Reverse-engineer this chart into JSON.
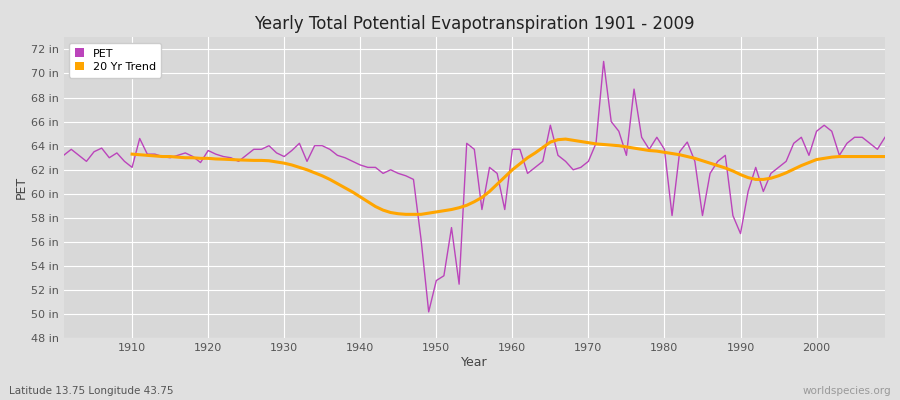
{
  "title": "Yearly Total Potential Evapotranspiration 1901 - 2009",
  "xlabel": "Year",
  "ylabel": "PET",
  "subtitle": "Latitude 13.75 Longitude 43.75",
  "watermark": "worldspecies.org",
  "pet_color": "#bb44bb",
  "trend_color": "#ffa500",
  "fig_bg_color": "#e0e0e0",
  "plot_bg_color": "#d8d8d8",
  "ylim": [
    48,
    73
  ],
  "xlim": [
    1901,
    2009
  ],
  "yticks": [
    48,
    50,
    52,
    54,
    56,
    58,
    60,
    62,
    64,
    66,
    68,
    70,
    72
  ],
  "xticks": [
    1910,
    1920,
    1930,
    1940,
    1950,
    1960,
    1970,
    1980,
    1990,
    2000
  ],
  "years": [
    1901,
    1902,
    1903,
    1904,
    1905,
    1906,
    1907,
    1908,
    1909,
    1910,
    1911,
    1912,
    1913,
    1914,
    1915,
    1916,
    1917,
    1918,
    1919,
    1920,
    1921,
    1922,
    1923,
    1924,
    1925,
    1926,
    1927,
    1928,
    1929,
    1930,
    1931,
    1932,
    1933,
    1934,
    1935,
    1936,
    1937,
    1938,
    1939,
    1940,
    1941,
    1942,
    1943,
    1944,
    1945,
    1946,
    1947,
    1948,
    1949,
    1950,
    1951,
    1952,
    1953,
    1954,
    1955,
    1956,
    1957,
    1958,
    1959,
    1960,
    1961,
    1962,
    1963,
    1964,
    1965,
    1966,
    1967,
    1968,
    1969,
    1970,
    1971,
    1972,
    1973,
    1974,
    1975,
    1976,
    1977,
    1978,
    1979,
    1980,
    1981,
    1982,
    1983,
    1984,
    1985,
    1986,
    1987,
    1988,
    1989,
    1990,
    1991,
    1992,
    1993,
    1994,
    1995,
    1996,
    1997,
    1998,
    1999,
    2000,
    2001,
    2002,
    2003,
    2004,
    2005,
    2006,
    2007,
    2008,
    2009
  ],
  "pet_values": [
    63.2,
    63.7,
    63.2,
    62.7,
    63.5,
    63.8,
    63.0,
    63.4,
    62.7,
    62.2,
    64.6,
    63.3,
    63.3,
    63.1,
    63.0,
    63.2,
    63.4,
    63.1,
    62.6,
    63.6,
    63.3,
    63.1,
    63.0,
    62.7,
    63.2,
    63.7,
    63.7,
    64.0,
    63.4,
    63.1,
    63.6,
    64.2,
    62.7,
    64.0,
    64.0,
    63.7,
    63.2,
    63.0,
    62.7,
    62.4,
    62.2,
    62.2,
    61.7,
    62.0,
    61.7,
    61.5,
    61.2,
    56.2,
    50.2,
    52.8,
    53.2,
    57.2,
    52.5,
    64.2,
    63.7,
    58.7,
    62.2,
    61.7,
    58.7,
    63.7,
    63.7,
    61.7,
    62.2,
    62.7,
    65.7,
    63.2,
    62.7,
    62.0,
    62.2,
    62.7,
    64.2,
    71.0,
    66.0,
    65.2,
    63.2,
    68.7,
    64.7,
    63.7,
    64.7,
    63.7,
    58.2,
    63.5,
    64.3,
    62.7,
    58.2,
    61.7,
    62.7,
    63.2,
    58.2,
    56.7,
    60.2,
    62.2,
    60.2,
    61.7,
    62.2,
    62.7,
    64.2,
    64.7,
    63.2,
    65.2,
    65.7,
    65.2,
    63.2,
    64.2,
    64.7,
    64.7,
    64.2,
    63.7,
    64.7
  ],
  "trend_values": [
    null,
    null,
    null,
    null,
    null,
    null,
    null,
    null,
    null,
    63.3,
    63.25,
    63.2,
    63.15,
    63.1,
    63.1,
    63.05,
    63.0,
    63.0,
    62.95,
    62.95,
    62.9,
    62.88,
    62.85,
    62.82,
    62.8,
    62.78,
    62.78,
    62.75,
    62.65,
    62.55,
    62.4,
    62.2,
    62.0,
    61.75,
    61.5,
    61.2,
    60.85,
    60.5,
    60.15,
    59.75,
    59.35,
    58.95,
    58.65,
    58.45,
    58.35,
    58.3,
    58.3,
    58.3,
    58.4,
    58.5,
    58.6,
    58.7,
    58.85,
    59.05,
    59.35,
    59.7,
    60.2,
    60.8,
    61.4,
    62.0,
    62.5,
    63.0,
    63.4,
    63.85,
    64.3,
    64.5,
    64.55,
    64.45,
    64.35,
    64.25,
    64.15,
    64.1,
    64.05,
    64.0,
    63.9,
    63.8,
    63.7,
    63.6,
    63.55,
    63.45,
    63.35,
    63.25,
    63.1,
    62.95,
    62.75,
    62.55,
    62.35,
    62.15,
    61.9,
    61.6,
    61.35,
    61.2,
    61.2,
    61.3,
    61.5,
    61.75,
    62.05,
    62.35,
    62.6,
    62.85,
    62.95,
    63.05,
    63.1,
    63.1,
    63.1,
    63.1,
    63.1,
    63.1,
    63.1
  ]
}
